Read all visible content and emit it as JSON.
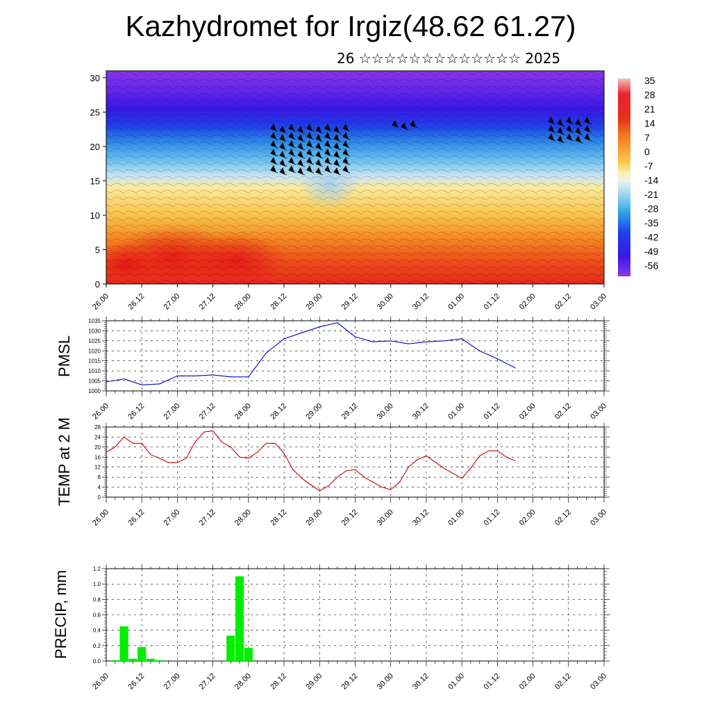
{
  "header": {
    "title": "Kazhydromet for Irgiz(48.62 61.27)",
    "subtitle": "26 ☆☆☆☆☆☆☆☆☆☆☆☆☆ 2025"
  },
  "time_labels": [
    "26.00",
    "26.12",
    "27.00",
    "27.12",
    "28.00",
    "28.12",
    "29.00",
    "29.12",
    "30.00",
    "30.12",
    "01.00",
    "01.12",
    "02.00",
    "02.12",
    "03.00"
  ],
  "chart_data": [
    {
      "type": "heatmap",
      "name": "cross-section",
      "title": "",
      "ylabel": "",
      "ylim": [
        0,
        31
      ],
      "yticks": [
        0,
        5,
        10,
        15,
        20,
        25,
        30
      ],
      "x_range_hours": [
        0,
        168
      ],
      "colorbar": {
        "ticks": [
          "35",
          "28",
          "21",
          "14",
          "7",
          "0",
          "-7",
          "-14",
          "-21",
          "-28",
          "-35",
          "-42",
          "-49",
          "-56"
        ],
        "colors": [
          "#f2b8b8",
          "#e8242b",
          "#f2801e",
          "#fbe28c",
          "#fbf6c8",
          "#b8dcf0",
          "#3aa8e6",
          "#2a5fe8",
          "#5520e0",
          "#8a38e8"
        ]
      }
    },
    {
      "type": "line",
      "name": "pmsl",
      "ylabel": "PMSL",
      "ylim": [
        1000,
        1035
      ],
      "yticks": [
        1000,
        1005,
        1010,
        1015,
        1020,
        1025,
        1030,
        1035
      ],
      "line_color": "#0000cc",
      "x_hours": [
        0,
        6,
        12,
        18,
        24,
        30,
        36,
        42,
        48,
        54,
        60,
        66,
        72,
        78,
        84,
        90,
        96,
        102,
        108,
        114,
        120,
        126,
        132,
        138,
        144,
        150,
        156,
        162
      ],
      "values": [
        1004.5,
        1006,
        1003,
        1003.5,
        1007.5,
        1007.5,
        1008,
        1007,
        1007,
        1019,
        1026,
        1029,
        1032,
        1034,
        1027,
        1024.5,
        1025,
        1023.5,
        1024.5,
        1025,
        1026,
        1020,
        1016,
        1011.5,
        null,
        null,
        null,
        null
      ]
    },
    {
      "type": "line",
      "name": "temp-2m",
      "ylabel": "TEMP at 2 M",
      "ylim": [
        0,
        28
      ],
      "yticks": [
        0,
        4,
        8,
        12,
        16,
        20,
        24,
        28
      ],
      "line_color": "#cc0000",
      "x_hours": [
        0,
        3,
        6,
        9,
        12,
        15,
        18,
        21,
        24,
        27,
        30,
        33,
        36,
        39,
        42,
        45,
        48,
        51,
        54,
        57,
        60,
        63,
        66,
        69,
        72,
        75,
        78,
        81,
        84,
        87,
        90,
        93,
        96,
        99,
        102,
        105,
        108,
        111,
        114,
        117,
        120,
        123,
        126,
        129,
        132,
        135,
        138
      ],
      "values": [
        18,
        20,
        24,
        21.5,
        21.5,
        17,
        15.5,
        13.8,
        13.8,
        15.5,
        22,
        26,
        26.5,
        22,
        20,
        16,
        15.5,
        18,
        21.5,
        21.5,
        17.5,
        11,
        7.5,
        5,
        2.5,
        4.5,
        8,
        10.5,
        11,
        8,
        6,
        4,
        3,
        6,
        12,
        15,
        16.5,
        14,
        11.5,
        9.5,
        7.5,
        11.5,
        16.5,
        18.5,
        18.5,
        16,
        14.5
      ]
    },
    {
      "type": "bar",
      "name": "precip",
      "ylabel": "PRECIP, mm",
      "ylim": [
        0,
        1.2
      ],
      "yticks": [
        "0.0",
        "0.2",
        "0.4",
        "0.6",
        "0.8",
        "1.0",
        "1.2"
      ],
      "bar_color": "#00ee00",
      "x_hours": [
        3,
        6,
        9,
        12,
        15,
        18,
        42,
        45,
        48
      ],
      "values": [
        0.01,
        0.45,
        0.03,
        0.18,
        0.03,
        0.01,
        0.33,
        1.1,
        0.17
      ]
    }
  ]
}
